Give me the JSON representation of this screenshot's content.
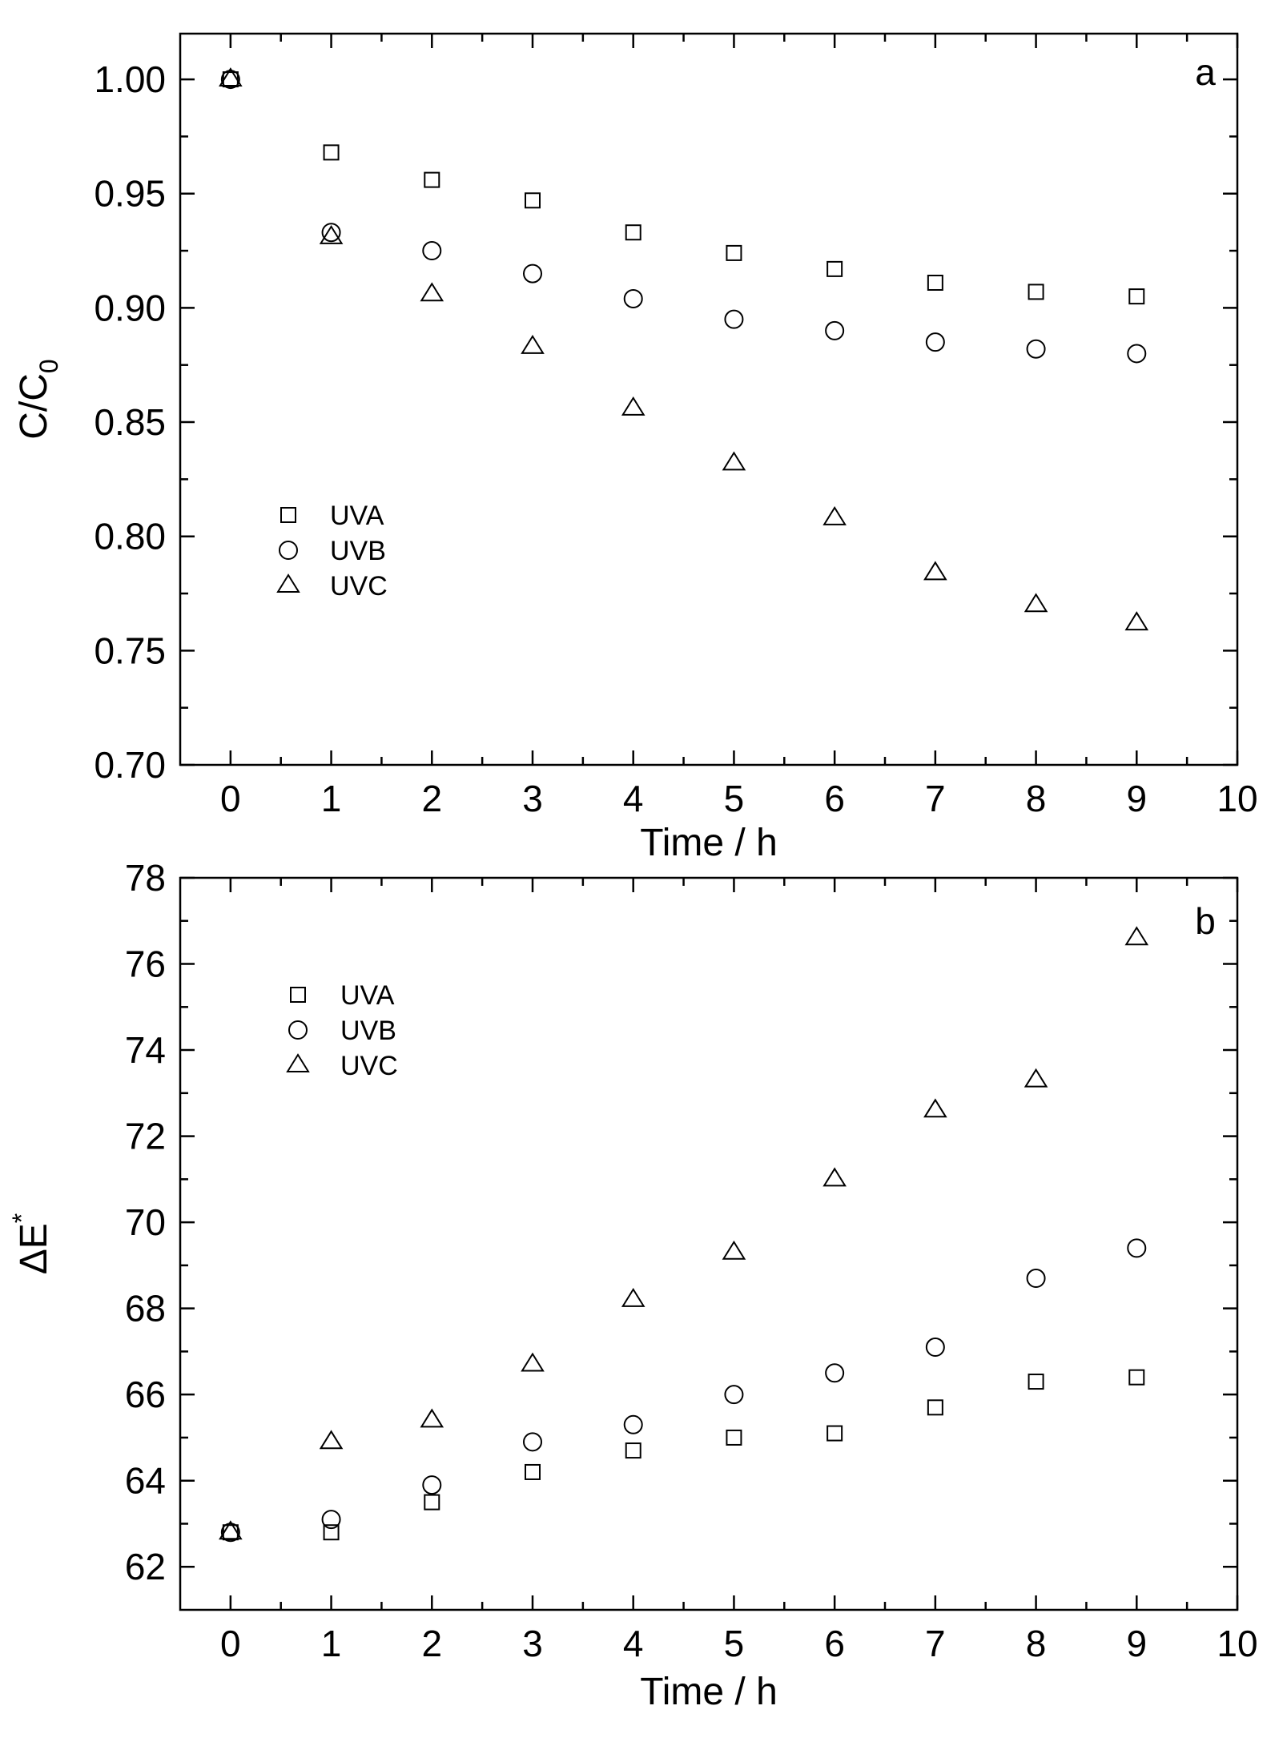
{
  "chart_data": [
    {
      "type": "scatter",
      "panel_label": "a",
      "xlabel": "Time / h",
      "ylabel": "C/C",
      "ylabel_sub": "0",
      "xlim": [
        -0.5,
        10
      ],
      "ylim": [
        0.7,
        1.02
      ],
      "xticks": [
        0,
        1,
        2,
        3,
        4,
        5,
        6,
        7,
        8,
        9,
        10
      ],
      "xtick_labels": [
        "0",
        "1",
        "2",
        "3",
        "4",
        "5",
        "6",
        "7",
        "8",
        "9",
        "10"
      ],
      "yticks": [
        0.7,
        0.75,
        0.8,
        0.85,
        0.9,
        0.95,
        1.0
      ],
      "ytick_labels": [
        "0.70",
        "0.75",
        "0.80",
        "0.85",
        "0.90",
        "0.95",
        "1.00"
      ],
      "legend_position": "middle-left",
      "x": [
        0,
        1,
        2,
        3,
        4,
        5,
        6,
        7,
        8,
        9
      ],
      "series": [
        {
          "name": "UVA",
          "marker": "square",
          "values": [
            1.0,
            0.968,
            0.956,
            0.947,
            0.933,
            0.924,
            0.917,
            0.911,
            0.907,
            0.905
          ]
        },
        {
          "name": "UVB",
          "marker": "circle",
          "values": [
            1.0,
            0.933,
            0.925,
            0.915,
            0.904,
            0.895,
            0.89,
            0.885,
            0.882,
            0.88
          ]
        },
        {
          "name": "UVC",
          "marker": "triangle",
          "values": [
            1.0,
            0.931,
            0.906,
            0.883,
            0.856,
            0.832,
            0.808,
            0.784,
            0.77,
            0.762
          ]
        }
      ]
    },
    {
      "type": "scatter",
      "panel_label": "b",
      "xlabel": "Time / h",
      "ylabel": "ΔE",
      "ylabel_sup": "*",
      "xlim": [
        -0.5,
        10
      ],
      "ylim": [
        61,
        78
      ],
      "xticks": [
        0,
        1,
        2,
        3,
        4,
        5,
        6,
        7,
        8,
        9,
        10
      ],
      "xtick_labels": [
        "0",
        "1",
        "2",
        "3",
        "4",
        "5",
        "6",
        "7",
        "8",
        "9",
        "10"
      ],
      "yticks": [
        62,
        64,
        66,
        68,
        70,
        72,
        74,
        76,
        78
      ],
      "ytick_labels": [
        "62",
        "64",
        "66",
        "68",
        "70",
        "72",
        "74",
        "76",
        "78"
      ],
      "legend_position": "top-left",
      "x": [
        0,
        1,
        2,
        3,
        4,
        5,
        6,
        7,
        8,
        9
      ],
      "series": [
        {
          "name": "UVA",
          "marker": "square",
          "values": [
            62.8,
            62.8,
            63.5,
            64.2,
            64.7,
            65.0,
            65.1,
            65.7,
            66.3,
            66.4
          ]
        },
        {
          "name": "UVB",
          "marker": "circle",
          "values": [
            62.8,
            63.1,
            63.9,
            64.9,
            65.3,
            66.0,
            66.5,
            67.1,
            68.7,
            69.4
          ]
        },
        {
          "name": "UVC",
          "marker": "triangle",
          "values": [
            62.8,
            64.9,
            65.4,
            66.7,
            68.2,
            69.3,
            71.0,
            72.6,
            73.3,
            76.6
          ]
        }
      ]
    }
  ]
}
